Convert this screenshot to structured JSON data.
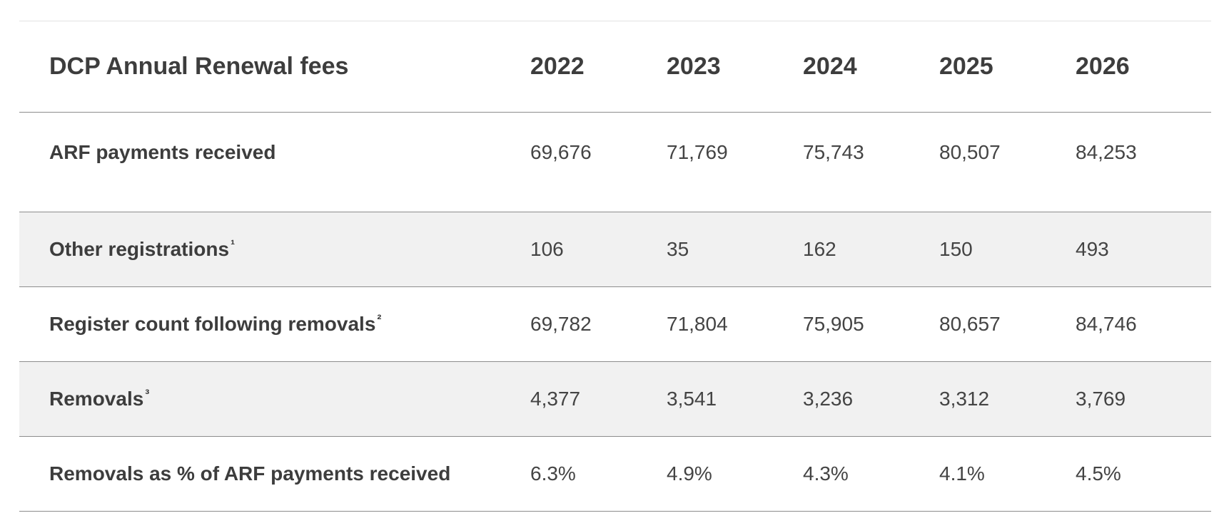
{
  "table": {
    "header": {
      "label": "DCP Annual Renewal fees",
      "years": [
        "2022",
        "2023",
        "2024",
        "2025",
        "2026"
      ]
    },
    "rows": [
      {
        "label": "ARF payments received",
        "footnote": "",
        "values": [
          "69,676",
          "71,769",
          "75,743",
          "80,507",
          "84,253"
        ]
      },
      {
        "label": "Other registrations",
        "footnote": "1",
        "values": [
          "106",
          "35",
          "162",
          "150",
          "493"
        ]
      },
      {
        "label": "Register count following removals",
        "footnote": "2",
        "values": [
          "69,782",
          "71,804",
          "75,905",
          "80,657",
          "84,746"
        ]
      },
      {
        "label": "Removals",
        "footnote": "3",
        "values": [
          "4,377",
          "3,541",
          "3,236",
          "3,312",
          "3,769"
        ]
      },
      {
        "label": "Removals as % of ARF payments received",
        "footnote": "",
        "values": [
          "6.3%",
          "4.9%",
          "4.3%",
          "4.1%",
          "4.5%"
        ]
      }
    ]
  },
  "colors": {
    "text": "#3d3d3d",
    "shaded_row": "#f1f1f1",
    "divider": "#8c8c8c"
  }
}
